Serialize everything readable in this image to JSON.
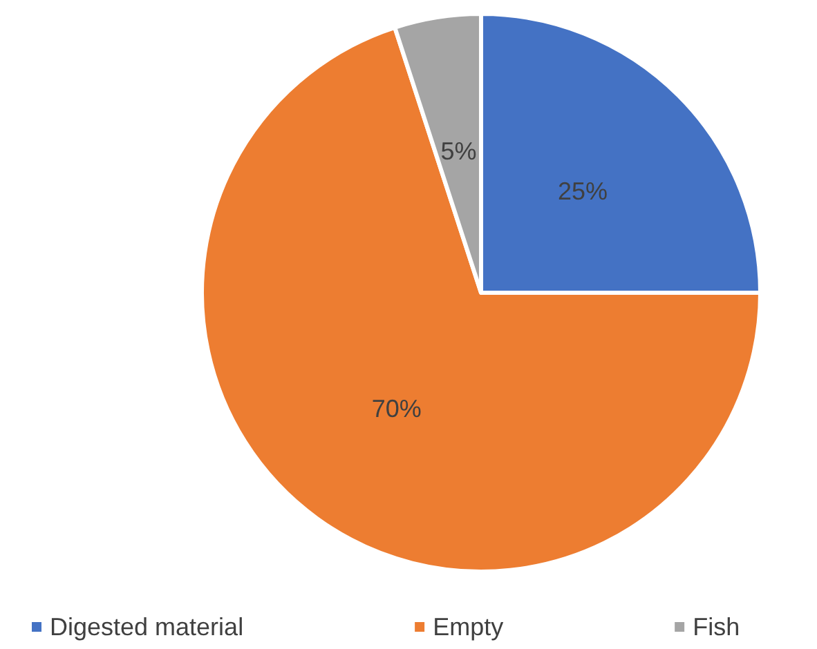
{
  "chart_data": {
    "type": "pie",
    "categories": [
      "Digested material",
      "Empty",
      "Fish"
    ],
    "values": [
      25,
      70,
      5
    ],
    "colors": [
      "#4472c4",
      "#ed7d31",
      "#a5a5a5"
    ],
    "value_labels": [
      "25%",
      "70%",
      "5%"
    ],
    "legend": "bottom"
  }
}
